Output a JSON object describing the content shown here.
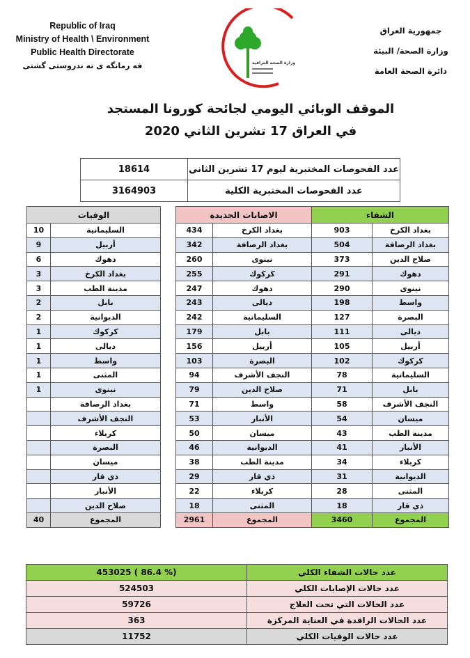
{
  "header": {
    "english": [
      "Republic of Iraq",
      "Ministry of Health \\ Environment",
      "Public Health Directorate",
      "فه رمانگه ى ته ندروستى گشتى"
    ],
    "arabic": [
      "جمهورية العراق",
      "وزارة الصحة/ البيئة",
      "دائرة الصحة العامة"
    ],
    "logo_text": "وزارة الصحة العراقية"
  },
  "title": {
    "line1": "الموقف الوبائي اليومي لجائحة كورونا المستجد",
    "line2": "في العراق  17  تشرين الثاني 2020"
  },
  "tests": [
    {
      "label": "عدد الفحوصات المختبرية  ليوم 17 تشرين الثاني",
      "value": "18614"
    },
    {
      "label": "عدد الفحوصات المختبرية الكلية",
      "value": "3164903"
    }
  ],
  "colors": {
    "recovery": "#92d050",
    "cases": "#f2c4c4",
    "deaths": "#d9d9d9",
    "alt_row": "#dce5f1",
    "summary_pink": "#f6dede"
  },
  "recovery": {
    "title": "الشفاء",
    "rows": [
      [
        "بغداد الكرخ",
        "903"
      ],
      [
        "بغداد الرصافة",
        "504"
      ],
      [
        "صلاح الدين",
        "373"
      ],
      [
        "دهوك",
        "291"
      ],
      [
        "نينوى",
        "290"
      ],
      [
        "واسط",
        "198"
      ],
      [
        "البصرة",
        "127"
      ],
      [
        "ديالى",
        "111"
      ],
      [
        "أربيل",
        "105"
      ],
      [
        "كركوك",
        "102"
      ],
      [
        "السليمانية",
        "78"
      ],
      [
        "بابل",
        "71"
      ],
      [
        "النجف الأشرف",
        "58"
      ],
      [
        "ميسان",
        "54"
      ],
      [
        "مدينة الطب",
        "43"
      ],
      [
        "الأنبار",
        "41"
      ],
      [
        "كربلاء",
        "34"
      ],
      [
        "الديوانية",
        "31"
      ],
      [
        "المثنى",
        "28"
      ],
      [
        "ذي قار",
        "18"
      ]
    ],
    "total_label": "المجموع",
    "total": "3460"
  },
  "cases": {
    "title": "الاصابات الجديدة",
    "rows": [
      [
        "بغداد الكرخ",
        "434"
      ],
      [
        "بغداد الرصافة",
        "342"
      ],
      [
        "نينوى",
        "260"
      ],
      [
        "كركوك",
        "255"
      ],
      [
        "دهوك",
        "247"
      ],
      [
        "ديالى",
        "243"
      ],
      [
        "السليمانية",
        "242"
      ],
      [
        "بابل",
        "179"
      ],
      [
        "أربيل",
        "156"
      ],
      [
        "البصرة",
        "103"
      ],
      [
        "النجف الأشرف",
        "94"
      ],
      [
        "صلاح الدين",
        "79"
      ],
      [
        "واسط",
        "71"
      ],
      [
        "الأنبار",
        "53"
      ],
      [
        "ميسان",
        "50"
      ],
      [
        "الديوانية",
        "46"
      ],
      [
        "مدينة الطب",
        "38"
      ],
      [
        "ذي قار",
        "29"
      ],
      [
        "كربلاء",
        "22"
      ],
      [
        "المثنى",
        "18"
      ]
    ],
    "total_label": "المجموع",
    "total": "2961"
  },
  "deaths": {
    "title": "الوفيات",
    "rows": [
      [
        "السليمانية",
        "10"
      ],
      [
        "أربيل",
        "9"
      ],
      [
        "دهوك",
        "6"
      ],
      [
        "بغداد الكرخ",
        "3"
      ],
      [
        "مدينة الطب",
        "3"
      ],
      [
        "بابل",
        "2"
      ],
      [
        "الديوانية",
        "2"
      ],
      [
        "كركوك",
        "1"
      ],
      [
        "ديالى",
        "1"
      ],
      [
        "واسط",
        "1"
      ],
      [
        "المثنى",
        "1"
      ],
      [
        "نينوى",
        "1"
      ],
      [
        "بغداد الرصافة",
        ""
      ],
      [
        "النجف الأشرف",
        ""
      ],
      [
        "كربلاء",
        ""
      ],
      [
        "البصرة",
        ""
      ],
      [
        "ميسان",
        ""
      ],
      [
        "ذي قار",
        ""
      ],
      [
        "الأنبار",
        ""
      ],
      [
        "صلاح الدين",
        ""
      ]
    ],
    "total_label": "المجموع",
    "total": "40"
  },
  "summary": [
    {
      "label": "عدد حالات الشفاء الكلي",
      "value": "453025    ( 86.4 %)"
    },
    {
      "label": "عدد حالات الإصابات الكلي",
      "value": "524503"
    },
    {
      "label": "عدد الحالات التي تحت العلاج",
      "value": "59726"
    },
    {
      "label": "عدد الحالات الراقدة في العناية المركزة",
      "value": "363"
    },
    {
      "label": "عدد حالات الوفيات الكلي",
      "value": "11752"
    }
  ]
}
